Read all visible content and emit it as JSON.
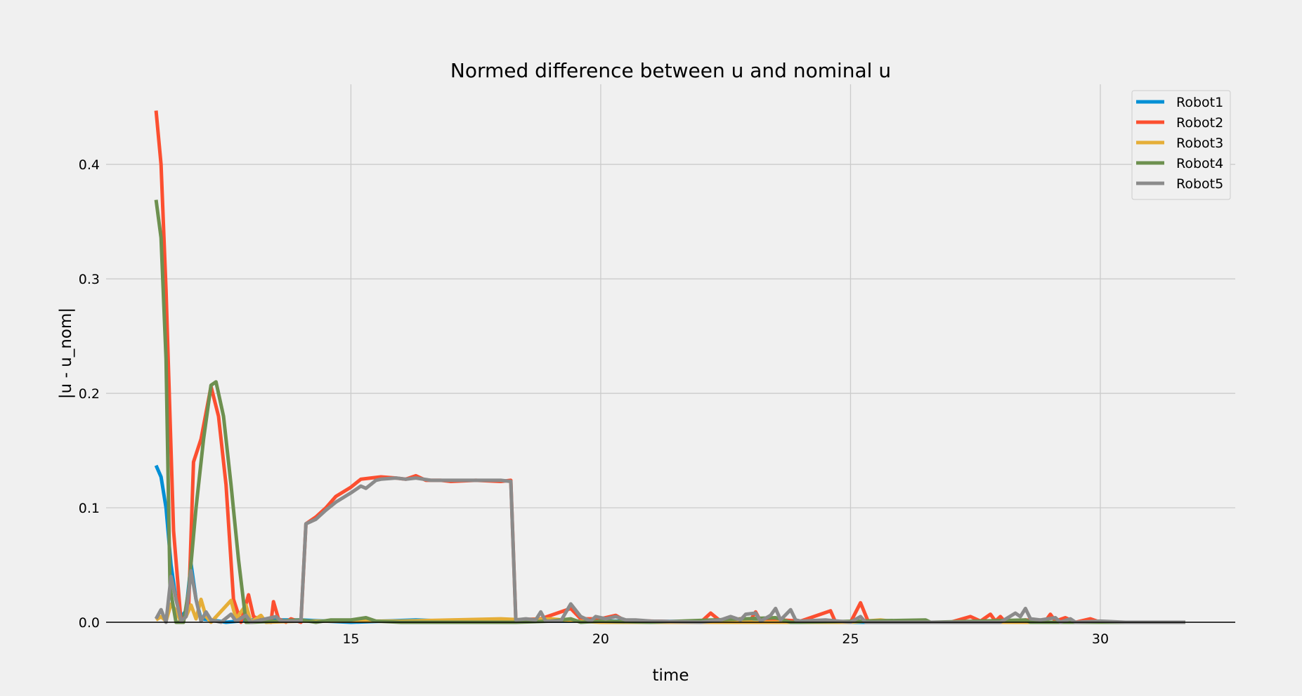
{
  "chart_data": {
    "type": "line",
    "title": "Normed difference between u and nominal u",
    "xlabel": "time",
    "ylabel": "|u - u_nom|",
    "xlim": [
      10.1,
      32.7
    ],
    "ylim": [
      -0.0,
      0.47
    ],
    "x_ticks": [
      15,
      20,
      25,
      30
    ],
    "x_tick_labels": [
      "15",
      "20",
      "25",
      "30"
    ],
    "y_ticks": [
      0.0,
      0.1,
      0.2,
      0.3,
      0.4
    ],
    "y_tick_labels": [
      "0.0",
      "0.1",
      "0.2",
      "0.3",
      "0.4"
    ],
    "grid": true,
    "legend_position": "top-right",
    "series": [
      {
        "name": "Robot1",
        "color": "#008fd5",
        "points": [
          [
            11.1,
            0.137
          ],
          [
            11.2,
            0.127
          ],
          [
            11.3,
            0.1
          ],
          [
            11.4,
            0.05
          ],
          [
            11.5,
            0.02
          ],
          [
            11.6,
            0.005
          ],
          [
            11.7,
            0.01
          ],
          [
            11.8,
            0.051
          ],
          [
            11.9,
            0.02
          ],
          [
            12.0,
            0.003
          ],
          [
            12.2,
            0.002
          ],
          [
            12.5,
            0.0
          ],
          [
            13.0,
            0.002
          ],
          [
            14.0,
            0.002
          ],
          [
            15.0,
            0.0
          ],
          [
            16.3,
            0.002
          ],
          [
            17.0,
            0.001
          ],
          [
            18.0,
            0.001
          ],
          [
            20.0,
            0.001
          ],
          [
            25.0,
            0.0
          ],
          [
            31.7,
            0.0
          ]
        ]
      },
      {
        "name": "Robot2",
        "color": "#fc4f30",
        "points": [
          [
            11.1,
            0.447
          ],
          [
            11.2,
            0.4
          ],
          [
            11.3,
            0.29
          ],
          [
            11.45,
            0.08
          ],
          [
            11.6,
            0.0
          ],
          [
            11.75,
            0.01
          ],
          [
            11.85,
            0.14
          ],
          [
            12.0,
            0.16
          ],
          [
            12.2,
            0.206
          ],
          [
            12.35,
            0.18
          ],
          [
            12.5,
            0.12
          ],
          [
            12.65,
            0.02
          ],
          [
            12.8,
            0.0
          ],
          [
            12.95,
            0.024
          ],
          [
            13.05,
            0.005
          ],
          [
            13.2,
            0.002
          ],
          [
            13.4,
            0.0
          ],
          [
            13.45,
            0.018
          ],
          [
            13.55,
            0.003
          ],
          [
            13.7,
            0.0
          ],
          [
            13.8,
            0.003
          ],
          [
            14.0,
            0.0
          ],
          [
            14.1,
            0.086
          ],
          [
            14.3,
            0.092
          ],
          [
            14.5,
            0.1
          ],
          [
            14.7,
            0.11
          ],
          [
            15.0,
            0.118
          ],
          [
            15.2,
            0.125
          ],
          [
            15.4,
            0.126
          ],
          [
            15.6,
            0.127
          ],
          [
            15.9,
            0.126
          ],
          [
            16.1,
            0.125
          ],
          [
            16.3,
            0.128
          ],
          [
            16.5,
            0.124
          ],
          [
            16.8,
            0.124
          ],
          [
            17.0,
            0.123
          ],
          [
            17.5,
            0.124
          ],
          [
            18.0,
            0.123
          ],
          [
            18.2,
            0.124
          ],
          [
            18.3,
            0.002
          ],
          [
            18.8,
            0.003
          ],
          [
            19.4,
            0.012
          ],
          [
            19.6,
            0.003
          ],
          [
            20.0,
            0.003
          ],
          [
            20.3,
            0.006
          ],
          [
            20.5,
            0.001
          ],
          [
            21.0,
            0.001
          ],
          [
            22.0,
            0.0
          ],
          [
            22.2,
            0.008
          ],
          [
            22.4,
            0.001
          ],
          [
            22.8,
            0.003
          ],
          [
            23.0,
            0.002
          ],
          [
            23.1,
            0.009
          ],
          [
            23.2,
            0.001
          ],
          [
            23.4,
            0.003
          ],
          [
            23.6,
            0.002
          ],
          [
            24.0,
            0.001
          ],
          [
            24.6,
            0.01
          ],
          [
            24.7,
            0.0
          ],
          [
            25.0,
            0.0
          ],
          [
            25.2,
            0.017
          ],
          [
            25.35,
            0.001
          ],
          [
            26.0,
            0.0
          ],
          [
            27.0,
            0.0
          ],
          [
            27.4,
            0.005
          ],
          [
            27.6,
            0.001
          ],
          [
            27.8,
            0.007
          ],
          [
            27.9,
            0.001
          ],
          [
            28.0,
            0.005
          ],
          [
            28.1,
            0.0
          ],
          [
            28.5,
            0.002
          ],
          [
            28.9,
            0.001
          ],
          [
            29.0,
            0.007
          ],
          [
            29.1,
            0.001
          ],
          [
            29.3,
            0.004
          ],
          [
            29.5,
            0.0
          ],
          [
            29.8,
            0.003
          ],
          [
            30.0,
            0.0
          ],
          [
            31.7,
            0.0
          ]
        ]
      },
      {
        "name": "Robot3",
        "color": "#e5ae38",
        "points": [
          [
            11.1,
            0.002
          ],
          [
            11.2,
            0.005
          ],
          [
            11.3,
            0.001
          ],
          [
            11.4,
            0.016
          ],
          [
            11.5,
            0.01
          ],
          [
            11.6,
            0.0
          ],
          [
            11.7,
            0.005
          ],
          [
            11.8,
            0.015
          ],
          [
            11.9,
            0.003
          ],
          [
            12.0,
            0.02
          ],
          [
            12.1,
            0.005
          ],
          [
            12.2,
            0.0
          ],
          [
            12.6,
            0.019
          ],
          [
            12.7,
            0.003
          ],
          [
            12.9,
            0.015
          ],
          [
            13.0,
            0.0
          ],
          [
            13.2,
            0.006
          ],
          [
            13.3,
            0.0
          ],
          [
            14.0,
            0.001
          ],
          [
            15.0,
            0.001
          ],
          [
            16.0,
            0.001
          ],
          [
            17.0,
            0.002
          ],
          [
            18.0,
            0.003
          ],
          [
            18.5,
            0.002
          ],
          [
            19.0,
            0.003
          ],
          [
            19.5,
            0.001
          ],
          [
            20.0,
            0.0
          ],
          [
            25.0,
            0.0
          ],
          [
            25.6,
            0.002
          ],
          [
            26.0,
            0.0
          ],
          [
            31.7,
            0.0
          ]
        ]
      },
      {
        "name": "Robot4",
        "color": "#6d904f",
        "points": [
          [
            11.1,
            0.369
          ],
          [
            11.2,
            0.336
          ],
          [
            11.3,
            0.23
          ],
          [
            11.38,
            0.03
          ],
          [
            11.5,
            0.0
          ],
          [
            11.65,
            0.0
          ],
          [
            11.75,
            0.027
          ],
          [
            11.9,
            0.1
          ],
          [
            12.05,
            0.16
          ],
          [
            12.2,
            0.207
          ],
          [
            12.3,
            0.21
          ],
          [
            12.45,
            0.18
          ],
          [
            12.6,
            0.12
          ],
          [
            12.75,
            0.055
          ],
          [
            12.9,
            0.0
          ],
          [
            13.0,
            0.0
          ],
          [
            14.0,
            0.002
          ],
          [
            14.3,
            0.0
          ],
          [
            14.6,
            0.002
          ],
          [
            15.0,
            0.002
          ],
          [
            15.3,
            0.004
          ],
          [
            15.5,
            0.001
          ],
          [
            16.0,
            0.0
          ],
          [
            17.0,
            0.0
          ],
          [
            18.0,
            0.0
          ],
          [
            18.3,
            0.0
          ],
          [
            19.0,
            0.001
          ],
          [
            19.4,
            0.003
          ],
          [
            19.6,
            0.0
          ],
          [
            20.0,
            0.001
          ],
          [
            21.0,
            0.0
          ],
          [
            23.5,
            0.004
          ],
          [
            23.8,
            0.0
          ],
          [
            24.0,
            0.0
          ],
          [
            26.5,
            0.002
          ],
          [
            26.6,
            0.0
          ],
          [
            28.5,
            0.002
          ],
          [
            28.6,
            0.0
          ],
          [
            31.7,
            0.0
          ]
        ]
      },
      {
        "name": "Robot5",
        "color": "#8b8b8b",
        "points": [
          [
            11.1,
            0.003
          ],
          [
            11.2,
            0.011
          ],
          [
            11.3,
            0.0
          ],
          [
            11.4,
            0.04
          ],
          [
            11.5,
            0.02
          ],
          [
            11.6,
            0.001
          ],
          [
            11.7,
            0.005
          ],
          [
            11.8,
            0.045
          ],
          [
            11.9,
            0.02
          ],
          [
            12.0,
            0.001
          ],
          [
            12.1,
            0.009
          ],
          [
            12.2,
            0.002
          ],
          [
            12.4,
            0.0
          ],
          [
            12.6,
            0.007
          ],
          [
            12.7,
            0.001
          ],
          [
            12.9,
            0.006
          ],
          [
            13.0,
            0.0
          ],
          [
            13.5,
            0.005
          ],
          [
            13.6,
            0.001
          ],
          [
            14.0,
            0.001
          ],
          [
            14.1,
            0.086
          ],
          [
            14.3,
            0.09
          ],
          [
            14.5,
            0.098
          ],
          [
            14.7,
            0.105
          ],
          [
            15.0,
            0.113
          ],
          [
            15.2,
            0.119
          ],
          [
            15.3,
            0.117
          ],
          [
            15.5,
            0.124
          ],
          [
            15.6,
            0.125
          ],
          [
            15.9,
            0.126
          ],
          [
            16.1,
            0.125
          ],
          [
            16.3,
            0.126
          ],
          [
            16.6,
            0.124
          ],
          [
            17.0,
            0.124
          ],
          [
            17.5,
            0.124
          ],
          [
            18.0,
            0.124
          ],
          [
            18.2,
            0.123
          ],
          [
            18.3,
            0.002
          ],
          [
            18.5,
            0.003
          ],
          [
            18.7,
            0.002
          ],
          [
            18.8,
            0.009
          ],
          [
            18.9,
            0.001
          ],
          [
            19.2,
            0.001
          ],
          [
            19.4,
            0.016
          ],
          [
            19.6,
            0.005
          ],
          [
            19.8,
            0.001
          ],
          [
            19.9,
            0.005
          ],
          [
            20.1,
            0.003
          ],
          [
            20.3,
            0.005
          ],
          [
            20.5,
            0.002
          ],
          [
            20.7,
            0.002
          ],
          [
            21.0,
            0.001
          ],
          [
            22.0,
            0.0
          ],
          [
            22.4,
            0.002
          ],
          [
            22.6,
            0.005
          ],
          [
            22.8,
            0.002
          ],
          [
            22.9,
            0.007
          ],
          [
            23.1,
            0.008
          ],
          [
            23.2,
            0.001
          ],
          [
            23.4,
            0.006
          ],
          [
            23.5,
            0.012
          ],
          [
            23.6,
            0.002
          ],
          [
            23.8,
            0.011
          ],
          [
            23.9,
            0.002
          ],
          [
            24.0,
            0.001
          ],
          [
            24.5,
            0.002
          ],
          [
            25.0,
            0.0
          ],
          [
            25.2,
            0.005
          ],
          [
            25.3,
            0.0
          ],
          [
            26.0,
            0.0
          ],
          [
            27.0,
            0.0
          ],
          [
            28.0,
            0.0
          ],
          [
            28.3,
            0.008
          ],
          [
            28.4,
            0.005
          ],
          [
            28.5,
            0.012
          ],
          [
            28.6,
            0.003
          ],
          [
            28.8,
            0.002
          ],
          [
            29.1,
            0.004
          ],
          [
            29.2,
            0.0
          ],
          [
            29.4,
            0.003
          ],
          [
            29.5,
            0.0
          ],
          [
            30.0,
            0.001
          ],
          [
            30.5,
            0.0
          ],
          [
            31.7,
            0.0
          ]
        ]
      }
    ]
  }
}
